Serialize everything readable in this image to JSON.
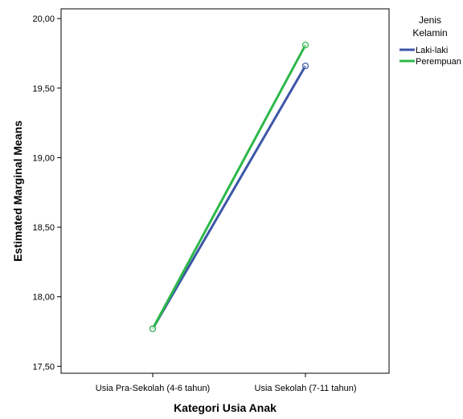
{
  "chart_data": {
    "type": "line",
    "xlabel": "Kategori Usia Anak",
    "ylabel": "Estimated Marginal Means",
    "categories": [
      "Usia Pra-Sekolah (4-6 tahun)",
      "Usia Sekolah (7-11 tahun)"
    ],
    "ylim": [
      17.45,
      20.07
    ],
    "yticks": [
      17.5,
      18.0,
      18.5,
      19.0,
      19.5,
      20.0
    ],
    "ytick_labels": [
      "17,50",
      "18,00",
      "18,50",
      "19,00",
      "19,50",
      "20,00"
    ],
    "grid": false,
    "legend": {
      "title_lines": [
        "Jenis",
        "Kelamin"
      ],
      "placement": "right"
    },
    "series": [
      {
        "name": "Laki-laki",
        "color": "#3d56a8",
        "values": [
          17.77,
          19.66
        ]
      },
      {
        "name": "Perempuan",
        "color": "#2db84a",
        "values": [
          17.77,
          19.81
        ]
      }
    ]
  }
}
